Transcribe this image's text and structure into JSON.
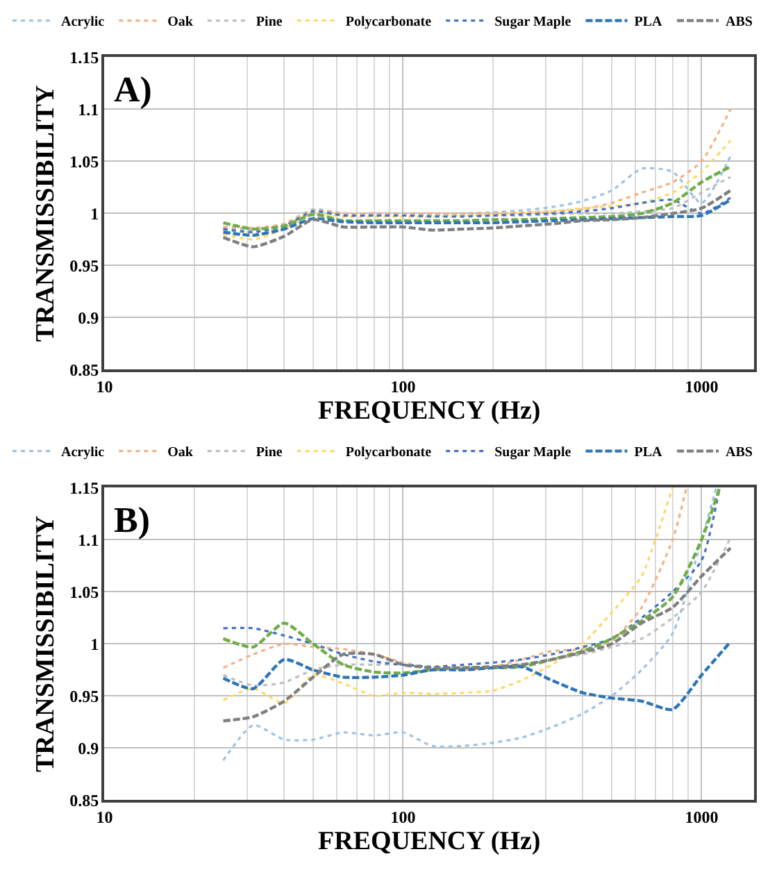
{
  "chart_data": [
    {
      "type": "line",
      "annotations": [
        "A)"
      ],
      "xlabel": "FREQUENCY (Hz)",
      "ylabel": "TRANSMISSIBILITY",
      "log": "x",
      "grid": true,
      "legend": "top",
      "xlim": [
        10,
        1500
      ],
      "xticks": [
        10,
        100,
        1000
      ],
      "ylim": [
        0.85,
        1.15
      ],
      "yticks": [
        0.85,
        0.9,
        0.95,
        1,
        1.05,
        1.1,
        1.15
      ],
      "x": [
        25,
        31.5,
        40,
        50,
        63,
        80,
        100,
        125,
        160,
        200,
        250,
        315,
        400,
        500,
        630,
        800,
        1000,
        1250
      ],
      "series": [
        {
          "name": "Acrylic",
          "color": "#9dc3e6",
          "line_style": "dotted",
          "values": [
            0.986,
            0.984,
            0.99,
            1.004,
            1.0,
            1.0,
            1.0,
            0.999,
            1.0,
            1.001,
            1.003,
            1.006,
            1.012,
            1.022,
            1.043,
            1.04,
            1.01,
            1.055
          ]
        },
        {
          "name": "Oak",
          "color": "#f4b183",
          "line_style": "dotted",
          "values": [
            0.987,
            0.986,
            0.99,
            1.003,
            1.0,
            1.0,
            1.0,
            1.0,
            1.0,
            1.0,
            1.001,
            1.002,
            1.004,
            1.01,
            1.02,
            1.03,
            1.05,
            1.1
          ]
        },
        {
          "name": "Pine",
          "color": "#bfbfbf",
          "line_style": "dotted",
          "values": [
            0.984,
            0.982,
            0.987,
            1.0,
            0.998,
            0.998,
            0.998,
            0.998,
            0.998,
            0.998,
            0.998,
            0.999,
            1.0,
            1.0,
            1.002,
            1.005,
            1.02,
            1.035
          ]
        },
        {
          "name": "Polycarbonate",
          "color": "#ffd966",
          "line_style": "dotted",
          "values": [
            0.98,
            0.975,
            0.985,
            1.0,
            0.997,
            0.997,
            0.997,
            0.997,
            0.998,
            0.999,
            1.0,
            1.002,
            1.005,
            1.007,
            1.01,
            1.02,
            1.04,
            1.07
          ]
        },
        {
          "name": "Sugar Maple",
          "color": "#4472c4",
          "line_style": "dotted",
          "values": [
            0.985,
            0.982,
            0.988,
            1.002,
            0.998,
            0.998,
            0.998,
            0.997,
            0.997,
            0.998,
            0.999,
            1.0,
            1.002,
            1.005,
            1.01,
            1.013,
            1.0,
            1.015
          ]
        },
        {
          "name": null,
          "color": "#70ad47",
          "line_style": "dashed",
          "values": [
            0.991,
            0.985,
            0.988,
            0.999,
            0.993,
            0.993,
            0.993,
            0.993,
            0.993,
            0.994,
            0.994,
            0.995,
            0.996,
            0.997,
            1.0,
            1.01,
            1.03,
            1.045
          ]
        },
        {
          "name": "PLA",
          "color": "#2e75b6",
          "line_style": "dashed",
          "values": [
            0.982,
            0.979,
            0.985,
            0.995,
            0.992,
            0.991,
            0.991,
            0.991,
            0.991,
            0.991,
            0.992,
            0.993,
            0.994,
            0.995,
            0.996,
            0.997,
            0.998,
            1.013
          ]
        },
        {
          "name": "ABS",
          "color": "#7f7f7f",
          "line_style": "dashed",
          "values": [
            0.977,
            0.968,
            0.978,
            0.994,
            0.987,
            0.987,
            0.987,
            0.984,
            0.985,
            0.986,
            0.988,
            0.99,
            0.993,
            0.994,
            0.996,
            1.0,
            1.005,
            1.022
          ]
        }
      ]
    },
    {
      "type": "line",
      "annotations": [
        "B)"
      ],
      "xlabel": "FREQUENCY (Hz)",
      "ylabel": "TRANSMISSIBILITY",
      "log": "x",
      "grid": true,
      "legend": "top",
      "xlim": [
        10,
        1500
      ],
      "xticks": [
        10,
        100,
        1000
      ],
      "ylim": [
        0.85,
        1.15
      ],
      "yticks": [
        0.85,
        0.9,
        0.95,
        1,
        1.05,
        1.1,
        1.15
      ],
      "series": [
        {
          "name": "Acrylic",
          "color": "#9dc3e6",
          "line_style": "dotted",
          "x": [
            25,
            31.5,
            40,
            50,
            63,
            80,
            100,
            125,
            160,
            200,
            250,
            315,
            400,
            500,
            630,
            800,
            1000,
            1120
          ],
          "values": [
            0.888,
            0.922,
            0.908,
            0.908,
            0.915,
            0.912,
            0.915,
            0.902,
            0.902,
            0.905,
            0.91,
            0.92,
            0.933,
            0.95,
            0.975,
            1.01,
            1.1,
            1.15
          ]
        },
        {
          "name": "Oak",
          "color": "#f4b183",
          "line_style": "dotted",
          "x": [
            25,
            31.5,
            40,
            50,
            63,
            80,
            100,
            125,
            160,
            200,
            250,
            315,
            400,
            500,
            630,
            800,
            890
          ],
          "values": [
            0.977,
            0.99,
            1.0,
            0.997,
            0.995,
            0.99,
            0.982,
            0.977,
            0.975,
            0.978,
            0.985,
            0.993,
            0.995,
            1.003,
            1.035,
            1.1,
            1.15
          ]
        },
        {
          "name": "Pine",
          "color": "#bfbfbf",
          "line_style": "dotted",
          "x": [
            25,
            31.5,
            40,
            50,
            63,
            80,
            100,
            125,
            160,
            200,
            250,
            315,
            400,
            500,
            630,
            800,
            1000,
            1250
          ],
          "values": [
            0.97,
            0.96,
            0.963,
            0.975,
            0.98,
            0.98,
            0.98,
            0.978,
            0.976,
            0.978,
            0.98,
            0.985,
            0.99,
            0.997,
            1.005,
            1.025,
            1.05,
            1.102
          ]
        },
        {
          "name": "Polycarbonate",
          "color": "#ffd966",
          "line_style": "dotted",
          "x": [
            25,
            31.5,
            40,
            50,
            63,
            80,
            100,
            125,
            160,
            200,
            250,
            315,
            400,
            500,
            630,
            700,
            800
          ],
          "values": [
            0.946,
            0.957,
            0.943,
            0.97,
            0.962,
            0.95,
            0.953,
            0.952,
            0.953,
            0.955,
            0.965,
            0.98,
            1.0,
            1.03,
            1.065,
            1.1,
            1.15
          ]
        },
        {
          "name": "Sugar Maple",
          "color": "#4472c4",
          "line_style": "dotted",
          "x": [
            25,
            31.5,
            40,
            50,
            63,
            80,
            100,
            125,
            160,
            200,
            250,
            315,
            400,
            500,
            630,
            800,
            1000,
            1150
          ],
          "values": [
            1.015,
            1.015,
            1.008,
            1.0,
            0.99,
            0.983,
            0.98,
            0.978,
            0.98,
            0.982,
            0.985,
            0.99,
            0.997,
            1.005,
            1.025,
            1.05,
            1.08,
            1.15
          ]
        },
        {
          "name": null,
          "color": "#70ad47",
          "line_style": "dashed",
          "x": [
            25,
            31.5,
            40,
            50,
            63,
            80,
            100,
            125,
            160,
            200,
            250,
            315,
            400,
            500,
            630,
            800,
            1000,
            1150
          ],
          "values": [
            1.005,
            0.997,
            1.02,
            1.0,
            0.98,
            0.973,
            0.972,
            0.975,
            0.977,
            0.977,
            0.978,
            0.985,
            0.993,
            1.005,
            1.022,
            1.045,
            1.1,
            1.15
          ]
        },
        {
          "name": "PLA",
          "color": "#2e75b6",
          "line_style": "dashed",
          "x": [
            25,
            31.5,
            40,
            50,
            63,
            80,
            100,
            125,
            160,
            200,
            250,
            315,
            400,
            500,
            630,
            800,
            1000,
            1250
          ],
          "values": [
            0.967,
            0.957,
            0.985,
            0.975,
            0.968,
            0.968,
            0.97,
            0.975,
            0.975,
            0.977,
            0.978,
            0.965,
            0.953,
            0.948,
            0.945,
            0.937,
            0.97,
            1.002
          ]
        },
        {
          "name": "ABS",
          "color": "#7f7f7f",
          "line_style": "dashed",
          "x": [
            25,
            31.5,
            40,
            50,
            63,
            80,
            100,
            125,
            160,
            200,
            250,
            315,
            400,
            500,
            630,
            800,
            1000,
            1250
          ],
          "values": [
            0.926,
            0.93,
            0.945,
            0.968,
            0.99,
            0.99,
            0.98,
            0.977,
            0.977,
            0.978,
            0.98,
            0.985,
            0.992,
            1.0,
            1.02,
            1.035,
            1.065,
            1.092
          ]
        }
      ]
    }
  ]
}
